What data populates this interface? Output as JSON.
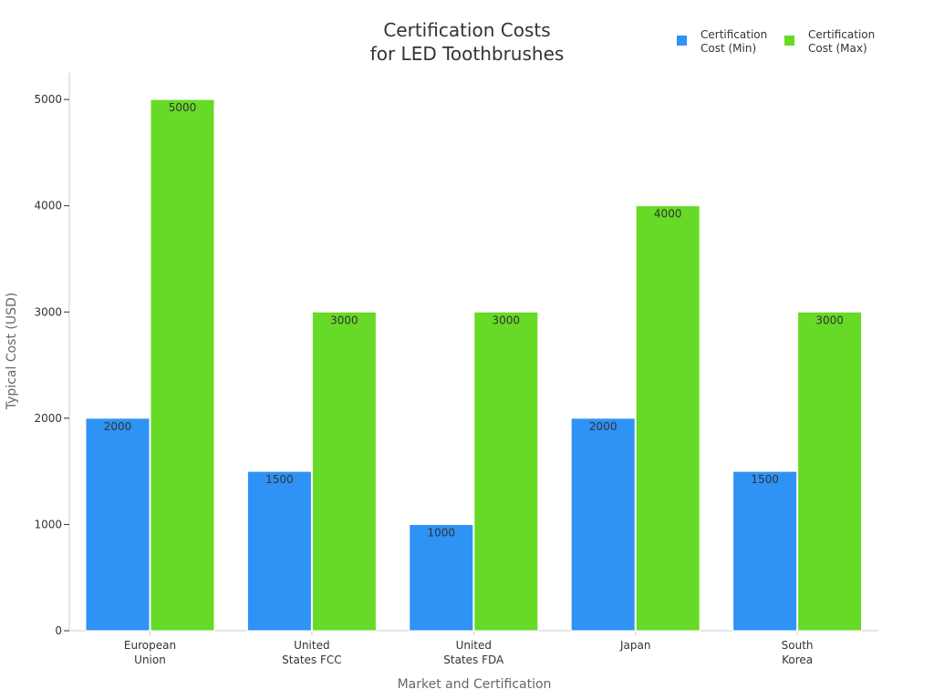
{
  "chart_data": {
    "type": "bar",
    "title": [
      "Certification Costs",
      "for LED Toothbrushes"
    ],
    "xlabel": "Market and Certification",
    "ylabel": "Typical Cost (USD)",
    "categories": [
      [
        "European",
        "Union"
      ],
      [
        "United",
        "States FCC"
      ],
      [
        "United",
        "States FDA"
      ],
      [
        "Japan"
      ],
      [
        "South",
        "Korea"
      ]
    ],
    "series": [
      {
        "name": [
          "Certification",
          "Cost (Min)"
        ],
        "color": "#2F92F5",
        "values": [
          2000,
          1500,
          1000,
          2000,
          1500
        ]
      },
      {
        "name": [
          "Certification",
          "Cost (Max)"
        ],
        "color": "#66DA26",
        "values": [
          5000,
          3000,
          3000,
          4000,
          3000
        ]
      }
    ],
    "ylim": [
      0,
      5250
    ],
    "yticks": [
      0,
      1000,
      2000,
      3000,
      4000,
      5000
    ],
    "grid": false,
    "legend_position": "top-right",
    "data_labels": true
  }
}
